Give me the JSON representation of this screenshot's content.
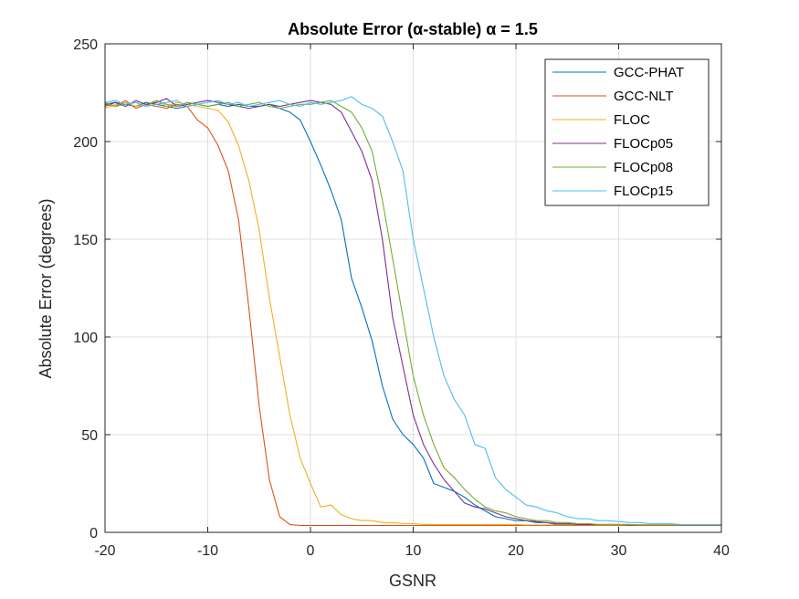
{
  "chart_data": {
    "type": "line",
    "title": "Absolute Error (α-stable) α = 1.5",
    "xlabel": "GSNR",
    "ylabel": "Absolute Error (degrees)",
    "xlim": [
      -20,
      40
    ],
    "ylim": [
      0,
      250
    ],
    "xticks": [
      -20,
      -10,
      0,
      10,
      20,
      30,
      40
    ],
    "yticks": [
      0,
      50,
      100,
      150,
      200,
      250
    ],
    "grid": true,
    "legend_position": "top-right",
    "x": [
      -20,
      -19,
      -18,
      -17,
      -16,
      -15,
      -14,
      -13,
      -12,
      -11,
      -10,
      -9,
      -8,
      -7,
      -6,
      -5,
      -4,
      -3,
      -2,
      -1,
      0,
      1,
      2,
      3,
      4,
      5,
      6,
      7,
      8,
      9,
      10,
      11,
      12,
      13,
      14,
      15,
      16,
      17,
      18,
      19,
      20,
      21,
      22,
      23,
      24,
      25,
      26,
      27,
      28,
      29,
      30,
      31,
      32,
      33,
      34,
      35,
      36,
      37,
      38,
      39,
      40
    ],
    "series": [
      {
        "name": "GCC-PHAT",
        "color": "#0072BD",
        "values": [
          218,
          220,
          219,
          218,
          220,
          219,
          218,
          217,
          218,
          219,
          218,
          219,
          218,
          219,
          218,
          218,
          219,
          217,
          215,
          211,
          200,
          188,
          175,
          160,
          130,
          115,
          98,
          75,
          58,
          50,
          45,
          38,
          25,
          23,
          21,
          18,
          14,
          11,
          8,
          7,
          6,
          6,
          5,
          5,
          4,
          4,
          4,
          3.5,
          3.5,
          3.5,
          3.5,
          3.5,
          3.5,
          3.5,
          3.5,
          3.5,
          3.5,
          3.5,
          3.5,
          3.5,
          3.5
        ]
      },
      {
        "name": "GCC-NLT",
        "color": "#D95319",
        "values": [
          219,
          218,
          221,
          217,
          219,
          218,
          217,
          219,
          218,
          211,
          207,
          198,
          185,
          160,
          115,
          65,
          27,
          8,
          4,
          3.5,
          3.5,
          3.5,
          3.5,
          3.5,
          3.5,
          3.5,
          3.5,
          3.5,
          3.5,
          3.5,
          3.5,
          3.5,
          3.5,
          3.5,
          3.5,
          3.5,
          3.5,
          3.5,
          3.5,
          3.5,
          3.5,
          3.5,
          3.5,
          3.5,
          3.5,
          3.5,
          3.5,
          3.5,
          3.5,
          3.5,
          3.5,
          3.5,
          3.5,
          3.5,
          3.5,
          3.5,
          3.5,
          3.5,
          3.5,
          3.5,
          3.5
        ]
      },
      {
        "name": "FLOC",
        "color": "#EDB120",
        "values": [
          217,
          219,
          220,
          218,
          219,
          221,
          218,
          220,
          219,
          218,
          217,
          216,
          210,
          198,
          180,
          155,
          120,
          90,
          60,
          38,
          25,
          13,
          14,
          9,
          7,
          6,
          6,
          5,
          5,
          4.5,
          4.5,
          4,
          4,
          4,
          4,
          4,
          4,
          4,
          4,
          4,
          4,
          3.8,
          3.8,
          3.8,
          3.8,
          3.8,
          3.8,
          3.8,
          3.8,
          3.8,
          3.8,
          3.8,
          3.8,
          3.8,
          3.8,
          3.8,
          3.8,
          3.8,
          3.8,
          3.8,
          3.8
        ]
      },
      {
        "name": "FLOCp05",
        "color": "#7E2F8E",
        "values": [
          219,
          220,
          218,
          221,
          219,
          220,
          222,
          218,
          219,
          220,
          221,
          220,
          219,
          218,
          217,
          218,
          219,
          218,
          219,
          220,
          221,
          220,
          219,
          215,
          205,
          195,
          180,
          150,
          110,
          85,
          60,
          45,
          35,
          27,
          21,
          15,
          13,
          12,
          10,
          8,
          7,
          6,
          5.5,
          5,
          4.5,
          4.5,
          4,
          4,
          4,
          4,
          4,
          3.8,
          3.8,
          3.8,
          3.8,
          3.8,
          3.8,
          3.8,
          3.8,
          3.8,
          3.8
        ]
      },
      {
        "name": "FLOCp08",
        "color": "#77AC30",
        "values": [
          220,
          218,
          219,
          220,
          218,
          221,
          219,
          218,
          220,
          219,
          218,
          219,
          220,
          218,
          219,
          220,
          218,
          217,
          218,
          219,
          219,
          220,
          221,
          218,
          215,
          207,
          195,
          170,
          140,
          110,
          80,
          60,
          45,
          33,
          28,
          22,
          17,
          13,
          11,
          10,
          8,
          7,
          6,
          6,
          5,
          5,
          4.5,
          4.5,
          4,
          4,
          4,
          4,
          3.8,
          3.8,
          3.8,
          3.8,
          3.8,
          3.8,
          3.8,
          3.8,
          3.8
        ]
      },
      {
        "name": "FLOCp15",
        "color": "#4DBEEE",
        "values": [
          220,
          221,
          219,
          220,
          218,
          219,
          220,
          221,
          218,
          219,
          220,
          221,
          219,
          220,
          218,
          219,
          220,
          221,
          219,
          218,
          220,
          219,
          220,
          221,
          223,
          219,
          217,
          213,
          200,
          185,
          150,
          125,
          100,
          80,
          68,
          60,
          45,
          43,
          28,
          22,
          18,
          14,
          13,
          11,
          10,
          8,
          7,
          7,
          6,
          6,
          5.5,
          5,
          5,
          4.5,
          4.5,
          4.5,
          4,
          4,
          4,
          4,
          4
        ]
      }
    ]
  }
}
